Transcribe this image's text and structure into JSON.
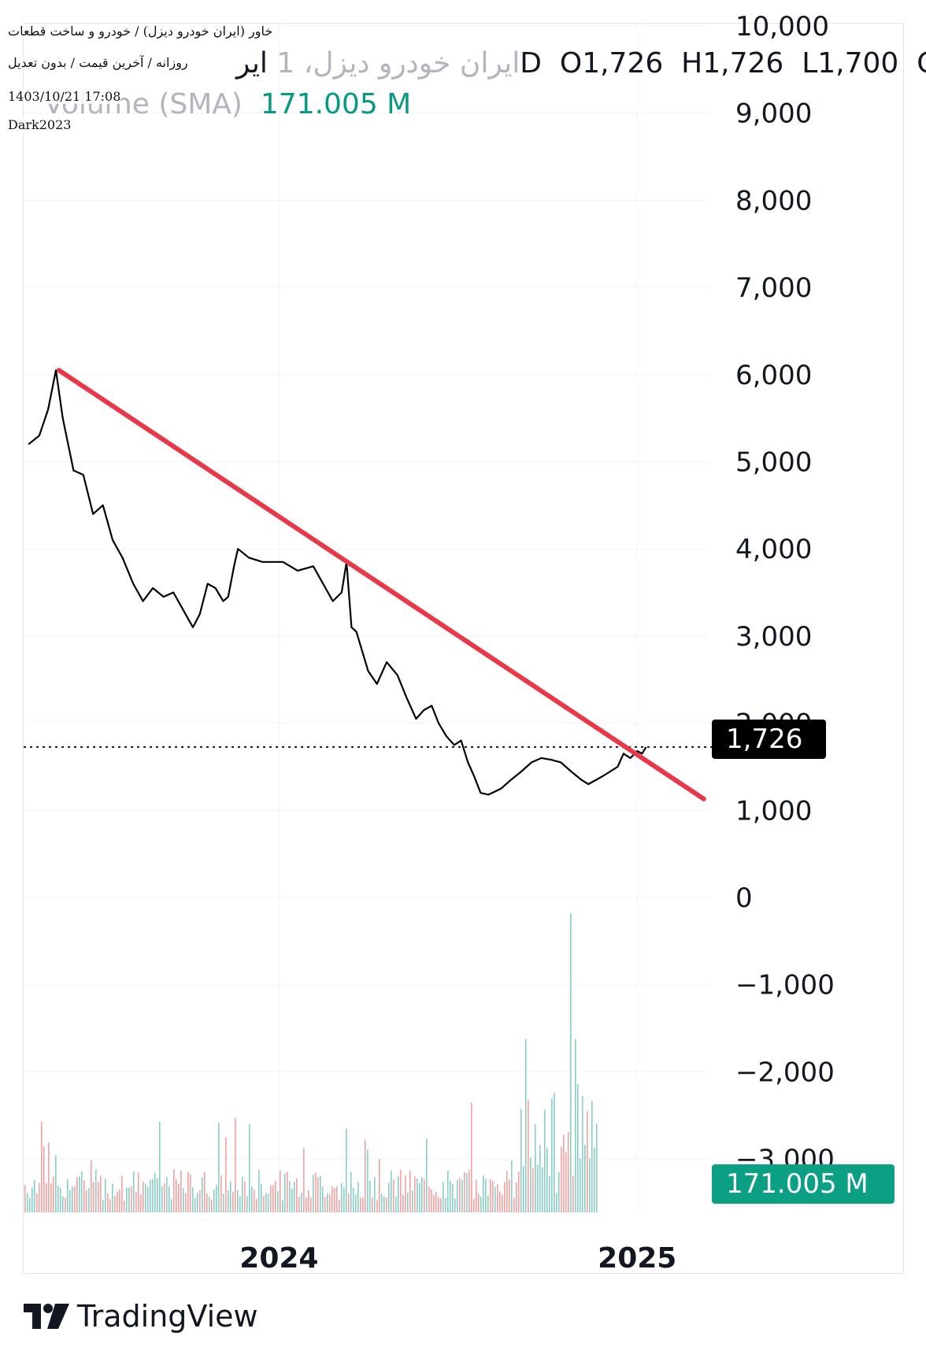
{
  "header": {
    "symbol_faded": "ایران خودرو دیزل، 1",
    "symbol": "ایرD",
    "open": "O1,726",
    "high": "H1,726",
    "low": "L1,700",
    "close": "C...",
    "volume_label": "Volume (SMA)",
    "volume_value": "171.005 M"
  },
  "meta": {
    "line1": "خاور (ایران خودرو دیزل) / خودرو و ساخت قطعات",
    "line2": "روزانه / آخرین قیمت / بدون تعدیل",
    "timestamp": "1403/10/21 17:08",
    "author": "Dark2023"
  },
  "price_badge": "1,726",
  "volume_badge": "171.005 M",
  "brand": "TradingView",
  "colors": {
    "price_line": "#000000",
    "trendline": "#e8394a",
    "volume_up": "#26a69a",
    "volume_down": "#ef5350",
    "grid": "#f0f3fa",
    "volume_badge": "#0b9f84"
  },
  "chart_data": {
    "type": "line",
    "y_axis": {
      "ticks": [
        10000,
        9000,
        8000,
        7000,
        6000,
        5000,
        4000,
        3000,
        2000,
        1000,
        0,
        -1000,
        -2000,
        -3000
      ],
      "tick_labels": [
        "10,000",
        "9,000",
        "8,000",
        "7,000",
        "6,000",
        "5,000",
        "4,000",
        "3,000",
        "2,000",
        "1,000",
        "0",
        "−1,000",
        "−2,000",
        "−3,000"
      ]
    },
    "x_axis": {
      "tick_labels": [
        "2024",
        "2025"
      ],
      "tick_values": [
        "2024-01-01",
        "2025-01-01"
      ],
      "range": [
        "2023-04-15",
        "2025-03-15"
      ]
    },
    "last_price": 1726,
    "series": [
      {
        "type": "line",
        "points": [
          [
            "2023-04-20",
            5200
          ],
          [
            "2023-05-01",
            5300
          ],
          [
            "2023-05-10",
            5600
          ],
          [
            "2023-05-18",
            6050
          ],
          [
            "2023-05-25",
            5500
          ],
          [
            "2023-06-05",
            4900
          ],
          [
            "2023-06-15",
            4850
          ],
          [
            "2023-06-25",
            4400
          ],
          [
            "2023-07-05",
            4500
          ],
          [
            "2023-07-15",
            4100
          ],
          [
            "2023-07-25",
            3900
          ],
          [
            "2023-08-05",
            3600
          ],
          [
            "2023-08-15",
            3400
          ],
          [
            "2023-08-25",
            3550
          ],
          [
            "2023-09-05",
            3450
          ],
          [
            "2023-09-15",
            3500
          ],
          [
            "2023-09-25",
            3300
          ],
          [
            "2023-10-05",
            3100
          ],
          [
            "2023-10-12",
            3250
          ],
          [
            "2023-10-20",
            3600
          ],
          [
            "2023-10-28",
            3550
          ],
          [
            "2023-11-05",
            3400
          ],
          [
            "2023-11-10",
            3450
          ],
          [
            "2023-11-16",
            3800
          ],
          [
            "2023-11-20",
            4000
          ],
          [
            "2023-12-01",
            3900
          ],
          [
            "2023-12-15",
            3850
          ],
          [
            "2024-01-05",
            3850
          ],
          [
            "2024-01-20",
            3750
          ],
          [
            "2024-02-05",
            3800
          ],
          [
            "2024-02-15",
            3600
          ],
          [
            "2024-02-25",
            3400
          ],
          [
            "2024-03-05",
            3500
          ],
          [
            "2024-03-10",
            3850
          ],
          [
            "2024-03-15",
            3100
          ],
          [
            "2024-03-20",
            3050
          ],
          [
            "2024-04-01",
            2600
          ],
          [
            "2024-04-10",
            2450
          ],
          [
            "2024-04-20",
            2700
          ],
          [
            "2024-05-01",
            2550
          ],
          [
            "2024-05-10",
            2300
          ],
          [
            "2024-05-20",
            2050
          ],
          [
            "2024-05-28",
            2150
          ],
          [
            "2024-06-05",
            2200
          ],
          [
            "2024-06-12",
            2000
          ],
          [
            "2024-06-20",
            1850
          ],
          [
            "2024-06-28",
            1750
          ],
          [
            "2024-07-05",
            1800
          ],
          [
            "2024-07-12",
            1550
          ],
          [
            "2024-07-18",
            1400
          ],
          [
            "2024-07-25",
            1200
          ],
          [
            "2024-08-02",
            1180
          ],
          [
            "2024-08-15",
            1250
          ],
          [
            "2024-08-25",
            1350
          ],
          [
            "2024-09-05",
            1450
          ],
          [
            "2024-09-15",
            1550
          ],
          [
            "2024-09-25",
            1600
          ],
          [
            "2024-10-05",
            1580
          ],
          [
            "2024-10-15",
            1550
          ],
          [
            "2024-10-25",
            1450
          ],
          [
            "2024-11-05",
            1350
          ],
          [
            "2024-11-12",
            1300
          ],
          [
            "2024-11-20",
            1350
          ],
          [
            "2024-11-28",
            1400
          ],
          [
            "2024-12-05",
            1450
          ],
          [
            "2024-12-12",
            1500
          ],
          [
            "2024-12-18",
            1650
          ],
          [
            "2024-12-25",
            1600
          ],
          [
            "2025-01-01",
            1680
          ],
          [
            "2025-01-06",
            1650
          ],
          [
            "2025-01-10",
            1726
          ]
        ]
      },
      {
        "type": "trendline",
        "points": [
          [
            "2023-05-21",
            6050
          ],
          [
            "2025-03-10",
            1130
          ]
        ]
      }
    ]
  }
}
